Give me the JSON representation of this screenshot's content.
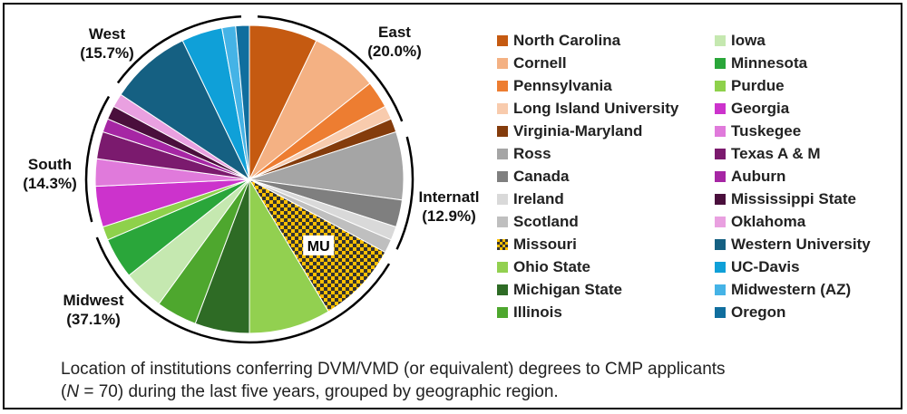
{
  "chart_data": {
    "type": "pie",
    "slices": [
      {
        "label": "North Carolina",
        "value": 5,
        "color": "#C55A11",
        "region": "East"
      },
      {
        "label": "Cornell",
        "value": 5,
        "color": "#F4B183",
        "region": "East"
      },
      {
        "label": "Pennsylvania",
        "value": 2,
        "color": "#ED7D31",
        "region": "East"
      },
      {
        "label": "Long Island University",
        "value": 1,
        "color": "#F8CBAD",
        "region": "East"
      },
      {
        "label": "Virginia-Maryland",
        "value": 1,
        "color": "#843C0C",
        "region": "East"
      },
      {
        "label": "Ross",
        "value": 5,
        "color": "#A5A5A5",
        "region": "Internatl"
      },
      {
        "label": "Canada",
        "value": 2,
        "color": "#7F7F7F",
        "region": "Internatl"
      },
      {
        "label": "Ireland",
        "value": 1,
        "color": "#D9D9D9",
        "region": "Internatl"
      },
      {
        "label": "Scotland",
        "value": 1,
        "color": "#BFBFBF",
        "region": "Internatl"
      },
      {
        "label": "Missouri",
        "value": 6,
        "color": "#FFC000",
        "pattern": "checker",
        "region": "Midwest",
        "slice_label": "MU"
      },
      {
        "label": "Ohio State",
        "value": 6,
        "color": "#92D050",
        "region": "Midwest"
      },
      {
        "label": "Michigan State",
        "value": 4,
        "color": "#2E6B25",
        "region": "Midwest"
      },
      {
        "label": "Illinois",
        "value": 3,
        "color": "#4EA72E",
        "region": "Midwest"
      },
      {
        "label": "Iowa",
        "value": 3,
        "color": "#C5E8B0",
        "region": "Midwest"
      },
      {
        "label": "Minnesota",
        "value": 3,
        "color": "#2AA63A",
        "region": "Midwest"
      },
      {
        "label": "Purdue",
        "value": 1,
        "color": "#8ED14B",
        "region": "Midwest"
      },
      {
        "label": "Georgia",
        "value": 3,
        "color": "#CC33CC",
        "region": "South"
      },
      {
        "label": "Tuskegee",
        "value": 2,
        "color": "#E07ADB",
        "region": "South"
      },
      {
        "label": "Texas A & M",
        "value": 2,
        "color": "#7B1A6E",
        "region": "South"
      },
      {
        "label": "Auburn",
        "value": 1,
        "color": "#A626A4",
        "region": "South"
      },
      {
        "label": "Mississippi State",
        "value": 1,
        "color": "#4A0F3C",
        "region": "South"
      },
      {
        "label": "Oklahoma",
        "value": 1,
        "color": "#E9A0E0",
        "region": "South"
      },
      {
        "label": "Western University",
        "value": 6,
        "color": "#156082",
        "region": "West"
      },
      {
        "label": "UC-Davis",
        "value": 3,
        "color": "#0FA0D8",
        "region": "West"
      },
      {
        "label": "Midwestern (AZ)",
        "value": 1,
        "color": "#45B3E6",
        "region": "West"
      },
      {
        "label": "Oregon",
        "value": 1,
        "color": "#106E9E",
        "region": "West"
      }
    ],
    "regions": [
      {
        "name": "East",
        "percent": "(20.0%)"
      },
      {
        "name": "Internatl",
        "percent": "(12.9%)"
      },
      {
        "name": "Midwest",
        "percent": "(37.1%)"
      },
      {
        "name": "South",
        "percent": "(14.3%)"
      },
      {
        "name": "West",
        "percent": "(15.7%)"
      }
    ],
    "legend": {
      "columns": [
        [
          "North Carolina",
          "Cornell",
          "Pennsylvania",
          "Long Island University",
          "Virginia-Maryland",
          "Ross",
          "Canada",
          "Ireland",
          "Scotland",
          "Missouri",
          "Ohio State",
          "Michigan State",
          "Illinois"
        ],
        [
          "Iowa",
          "Minnesota",
          "Purdue",
          "Georgia",
          "Tuskegee",
          "Texas A & M",
          "Auburn",
          "Mississippi State",
          "Oklahoma",
          "Western University",
          "UC-Davis",
          "Midwestern (AZ)",
          "Oregon"
        ]
      ]
    },
    "caption": {
      "line1": "Location of institutions conferring DVM/VMD (or equivalent) degrees to CMP applicants",
      "line2_prefix": "(",
      "line2_n": "N",
      "line2_rest": " = 70) during the last five years, grouped by geographic region."
    }
  }
}
